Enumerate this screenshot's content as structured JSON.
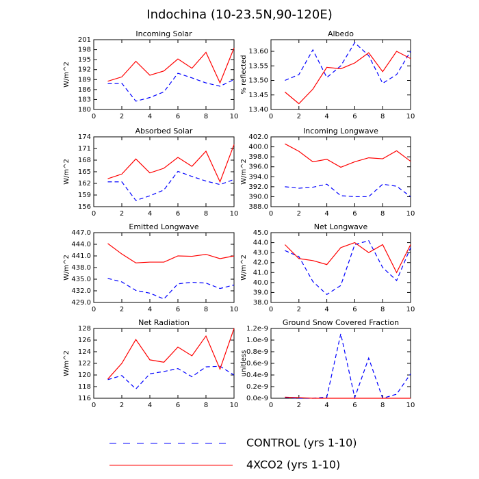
{
  "title": "Indochina (10-23.5N,90-120E)",
  "legend": [
    {
      "name": "CONTROL (yrs 1-10)",
      "color": "#0000ff",
      "dash": true
    },
    {
      "name": "4XCO2 (yrs 1-10)",
      "color": "#ff0000",
      "dash": false
    }
  ],
  "chart_data": [
    {
      "type": "line",
      "title": "Incoming Solar",
      "y_label": "W/m^2",
      "x": [
        1,
        2,
        3,
        4,
        5,
        6,
        7,
        8,
        9,
        10
      ],
      "xlim": [
        0,
        10
      ],
      "xticks": [
        0,
        2,
        4,
        6,
        8,
        10
      ],
      "ylim": [
        180,
        201
      ],
      "yticks": [
        180,
        183,
        186,
        189,
        192,
        195,
        198,
        201
      ],
      "series": [
        {
          "color": "#0000ff",
          "dash": true,
          "values": [
            187.8,
            187.9,
            182.5,
            183.6,
            185.3,
            190.9,
            189.5,
            188.0,
            187.0,
            189.0
          ]
        },
        {
          "color": "#ff0000",
          "dash": false,
          "values": [
            188.5,
            189.8,
            194.5,
            190.3,
            191.6,
            195.2,
            192.4,
            197.2,
            188.0,
            198.5
          ]
        }
      ]
    },
    {
      "type": "line",
      "title": "Albedo",
      "y_label": "% reflected",
      "x": [
        1,
        2,
        3,
        4,
        5,
        6,
        7,
        8,
        9,
        10
      ],
      "xlim": [
        0,
        10
      ],
      "xticks": [
        0,
        2,
        4,
        6,
        8,
        10
      ],
      "ylim": [
        13.4,
        13.64
      ],
      "yticks": [
        {
          "value": 13.4,
          "label": "13.40"
        },
        {
          "value": 13.45,
          "label": "13.45"
        },
        {
          "value": 13.5,
          "label": "13.50"
        },
        {
          "value": 13.55,
          "label": "13.55"
        },
        {
          "value": 13.6,
          "label": "13.60"
        }
      ],
      "series": [
        {
          "color": "#0000ff",
          "dash": true,
          "values": [
            13.5,
            13.52,
            13.605,
            13.51,
            13.55,
            13.63,
            13.585,
            13.49,
            13.52,
            13.6
          ]
        },
        {
          "color": "#ff0000",
          "dash": false,
          "values": [
            13.46,
            13.42,
            13.47,
            13.545,
            13.54,
            13.56,
            13.595,
            13.53,
            13.6,
            13.575
          ]
        }
      ]
    },
    {
      "type": "line",
      "title": "Absorbed Solar",
      "y_label": "W/m^2",
      "x": [
        1,
        2,
        3,
        4,
        5,
        6,
        7,
        8,
        9,
        10
      ],
      "xlim": [
        0,
        10
      ],
      "xticks": [
        0,
        2,
        4,
        6,
        8,
        10
      ],
      "ylim": [
        156,
        174
      ],
      "yticks": [
        156,
        159,
        162,
        165,
        168,
        171,
        174
      ],
      "series": [
        {
          "color": "#0000ff",
          "dash": true,
          "values": [
            162.4,
            162.4,
            157.6,
            158.8,
            160.3,
            165.1,
            163.8,
            162.6,
            161.7,
            163.0
          ]
        },
        {
          "color": "#ff0000",
          "dash": false,
          "values": [
            163.2,
            164.4,
            168.3,
            164.7,
            165.9,
            168.7,
            166.4,
            170.3,
            162.4,
            172.0
          ]
        }
      ]
    },
    {
      "type": "line",
      "title": "Incoming Longwave",
      "y_label": "W/m^2",
      "x": [
        1,
        2,
        3,
        4,
        5,
        6,
        7,
        8,
        9,
        10
      ],
      "xlim": [
        0,
        10
      ],
      "xticks": [
        0,
        2,
        4,
        6,
        8,
        10
      ],
      "ylim": [
        388,
        402
      ],
      "yticks": [
        {
          "value": 388,
          "label": "388.0"
        },
        {
          "value": 390,
          "label": "390.0"
        },
        {
          "value": 392,
          "label": "392.0"
        },
        {
          "value": 394,
          "label": "394.0"
        },
        {
          "value": 396,
          "label": "396.0"
        },
        {
          "value": 398,
          "label": "398.0"
        },
        {
          "value": 400,
          "label": "400.0"
        },
        {
          "value": 402,
          "label": "402.0"
        }
      ],
      "series": [
        {
          "color": "#0000ff",
          "dash": true,
          "values": [
            392.0,
            391.7,
            391.9,
            392.5,
            390.2,
            390.0,
            390.0,
            392.5,
            392.1,
            390.0
          ]
        },
        {
          "color": "#ff0000",
          "dash": false,
          "values": [
            400.6,
            399.1,
            397.0,
            397.5,
            395.9,
            397.0,
            397.8,
            397.6,
            399.2,
            397.1
          ]
        }
      ]
    },
    {
      "type": "line",
      "title": "Emitted Longwave",
      "y_label": "W/m^2",
      "x": [
        1,
        2,
        3,
        4,
        5,
        6,
        7,
        8,
        9,
        10
      ],
      "xlim": [
        0,
        10
      ],
      "xticks": [
        0,
        2,
        4,
        6,
        8,
        10
      ],
      "ylim": [
        429,
        447
      ],
      "yticks": [
        {
          "value": 429,
          "label": "429.0"
        },
        {
          "value": 432,
          "label": "432.0"
        },
        {
          "value": 435,
          "label": "435.0"
        },
        {
          "value": 438,
          "label": "438.0"
        },
        {
          "value": 441,
          "label": "441.0"
        },
        {
          "value": 444,
          "label": "444.0"
        },
        {
          "value": 447,
          "label": "447.0"
        }
      ],
      "series": [
        {
          "color": "#0000ff",
          "dash": true,
          "values": [
            435.2,
            434.3,
            432.1,
            431.4,
            429.9,
            433.8,
            434.2,
            434.0,
            432.6,
            433.5
          ]
        },
        {
          "color": "#ff0000",
          "dash": false,
          "values": [
            444.2,
            441.5,
            439.2,
            439.4,
            439.4,
            441.0,
            440.9,
            441.4,
            440.3,
            441.0
          ]
        }
      ]
    },
    {
      "type": "line",
      "title": "Net Longwave",
      "y_label": "W/m^2",
      "x": [
        1,
        2,
        3,
        4,
        5,
        6,
        7,
        8,
        9,
        10
      ],
      "xlim": [
        0,
        10
      ],
      "xticks": [
        0,
        2,
        4,
        6,
        8,
        10
      ],
      "ylim": [
        38,
        45
      ],
      "yticks": [
        {
          "value": 38,
          "label": "38.0"
        },
        {
          "value": 39,
          "label": "39.0"
        },
        {
          "value": 40,
          "label": "40.0"
        },
        {
          "value": 41,
          "label": "41.0"
        },
        {
          "value": 42,
          "label": "42.0"
        },
        {
          "value": 43,
          "label": "43.0"
        },
        {
          "value": 44,
          "label": "44.0"
        },
        {
          "value": 45,
          "label": "45.0"
        }
      ],
      "series": [
        {
          "color": "#0000ff",
          "dash": true,
          "values": [
            43.2,
            42.6,
            40.1,
            38.8,
            39.7,
            43.8,
            44.2,
            41.5,
            40.2,
            43.5
          ]
        },
        {
          "color": "#ff0000",
          "dash": false,
          "values": [
            43.8,
            42.4,
            42.2,
            41.8,
            43.5,
            44.0,
            43.0,
            43.8,
            41.0,
            43.8
          ]
        }
      ]
    },
    {
      "type": "line",
      "title": "Net Radiation",
      "y_label": "W/m^2",
      "x": [
        1,
        2,
        3,
        4,
        5,
        6,
        7,
        8,
        9,
        10
      ],
      "xlim": [
        0,
        10
      ],
      "xticks": [
        0,
        2,
        4,
        6,
        8,
        10
      ],
      "ylim": [
        116,
        128
      ],
      "yticks": [
        116,
        118,
        120,
        122,
        124,
        126,
        128
      ],
      "series": [
        {
          "color": "#0000ff",
          "dash": true,
          "values": [
            119.2,
            119.9,
            117.6,
            120.2,
            120.6,
            121.1,
            119.7,
            121.4,
            121.5,
            120.0
          ]
        },
        {
          "color": "#ff0000",
          "dash": false,
          "values": [
            119.3,
            122.0,
            126.1,
            122.6,
            122.2,
            124.8,
            123.3,
            126.7,
            121.0,
            128.0
          ]
        }
      ]
    },
    {
      "type": "line",
      "title": "Ground Snow Covered Fraction",
      "y_label": "unitless",
      "x": [
        1,
        2,
        3,
        4,
        5,
        6,
        7,
        8,
        9,
        10
      ],
      "xlim": [
        0,
        10
      ],
      "xticks": [
        0,
        2,
        4,
        6,
        8,
        10
      ],
      "ylim": [
        0,
        1.2e-09
      ],
      "yticks": [
        {
          "value": 0,
          "label": "0.0e-9"
        },
        {
          "value": 2e-10,
          "label": "0.2e-9"
        },
        {
          "value": 4e-10,
          "label": "0.4e-9"
        },
        {
          "value": 6e-10,
          "label": "0.6e-9"
        },
        {
          "value": 8e-10,
          "label": "0.8e-9"
        },
        {
          "value": 1e-09,
          "label": "1.0e-9"
        },
        {
          "value": 1.2e-09,
          "label": "1.2e-9"
        }
      ],
      "series": [
        {
          "color": "#0000ff",
          "dash": true,
          "values": [
            1.5e-11,
            0,
            0,
            2e-11,
            1.11e-09,
            1e-11,
            6.9e-10,
            0,
            7e-11,
            4.2e-10
          ]
        },
        {
          "color": "#ff0000",
          "dash": false,
          "values": [
            2e-11,
            1e-11,
            0,
            0,
            0,
            0,
            0,
            0,
            0,
            0
          ]
        }
      ]
    }
  ]
}
